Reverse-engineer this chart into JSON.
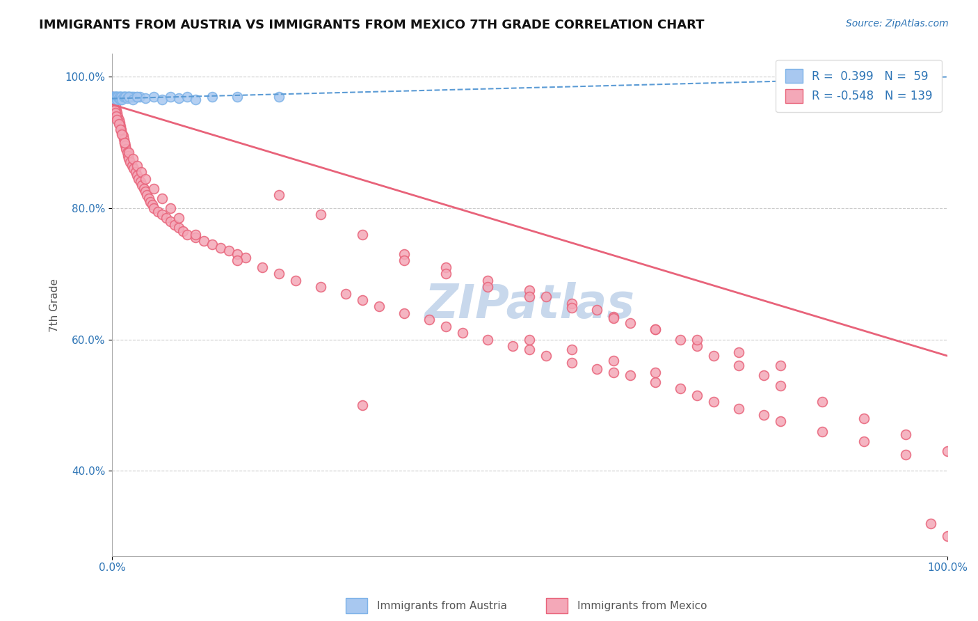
{
  "title": "IMMIGRANTS FROM AUSTRIA VS IMMIGRANTS FROM MEXICO 7TH GRADE CORRELATION CHART",
  "source": "Source: ZipAtlas.com",
  "ylabel": "7th Grade",
  "legend_blue_R": "0.399",
  "legend_blue_N": "59",
  "legend_pink_R": "-0.548",
  "legend_pink_N": "139",
  "legend_blue_label": "Immigrants from Austria",
  "legend_pink_label": "Immigrants from Mexico",
  "watermark": "ZIPatlas",
  "blue_color": "#A8C8F0",
  "blue_edge_color": "#7EB3E8",
  "blue_line_color": "#5B9BD5",
  "pink_color": "#F4A8B8",
  "pink_edge_color": "#E8637A",
  "pink_line_color": "#E8637A",
  "background_color": "#FFFFFF",
  "grid_color": "#CCCCCC",
  "title_color": "#111111",
  "source_color": "#2E75B6",
  "axis_label_color": "#555555",
  "blue_scatter_x": [
    0.001,
    0.002,
    0.003,
    0.004,
    0.005,
    0.006,
    0.007,
    0.008,
    0.009,
    0.01,
    0.01,
    0.012,
    0.013,
    0.014,
    0.015,
    0.016,
    0.017,
    0.018,
    0.019,
    0.02,
    0.021,
    0.022,
    0.023,
    0.025,
    0.027,
    0.03,
    0.033,
    0.0,
    0.001,
    0.001,
    0.002,
    0.002,
    0.003,
    0.003,
    0.004,
    0.005,
    0.006,
    0.007,
    0.008,
    0.009,
    0.01,
    0.011,
    0.012,
    0.014,
    0.016,
    0.018,
    0.02,
    0.025,
    0.03,
    0.04,
    0.05,
    0.06,
    0.07,
    0.08,
    0.09,
    0.1,
    0.12,
    0.15,
    0.2
  ],
  "blue_scatter_y": [
    0.97,
    0.97,
    0.97,
    0.97,
    0.97,
    0.97,
    0.97,
    0.97,
    0.97,
    0.97,
    0.97,
    0.97,
    0.97,
    0.97,
    0.97,
    0.97,
    0.97,
    0.97,
    0.97,
    0.97,
    0.97,
    0.97,
    0.97,
    0.97,
    0.97,
    0.97,
    0.97,
    0.97,
    0.965,
    0.97,
    0.968,
    0.97,
    0.966,
    0.97,
    0.97,
    0.97,
    0.965,
    0.97,
    0.968,
    0.97,
    0.966,
    0.97,
    0.965,
    0.97,
    0.97,
    0.968,
    0.97,
    0.965,
    0.97,
    0.968,
    0.97,
    0.965,
    0.97,
    0.968,
    0.97,
    0.966,
    0.97,
    0.97,
    0.97
  ],
  "pink_scatter_x": [
    0.001,
    0.002,
    0.003,
    0.004,
    0.005,
    0.006,
    0.007,
    0.008,
    0.009,
    0.01,
    0.011,
    0.012,
    0.013,
    0.014,
    0.015,
    0.016,
    0.017,
    0.018,
    0.019,
    0.02,
    0.022,
    0.024,
    0.026,
    0.028,
    0.03,
    0.032,
    0.034,
    0.036,
    0.038,
    0.04,
    0.042,
    0.044,
    0.046,
    0.048,
    0.05,
    0.055,
    0.06,
    0.065,
    0.07,
    0.075,
    0.08,
    0.085,
    0.09,
    0.1,
    0.11,
    0.12,
    0.13,
    0.14,
    0.15,
    0.16,
    0.001,
    0.002,
    0.003,
    0.004,
    0.005,
    0.006,
    0.008,
    0.01,
    0.012,
    0.015,
    0.02,
    0.025,
    0.03,
    0.035,
    0.04,
    0.05,
    0.06,
    0.07,
    0.08,
    0.1,
    0.15,
    0.18,
    0.2,
    0.22,
    0.25,
    0.28,
    0.3,
    0.32,
    0.35,
    0.38,
    0.4,
    0.42,
    0.45,
    0.48,
    0.5,
    0.52,
    0.55,
    0.58,
    0.6,
    0.62,
    0.65,
    0.68,
    0.7,
    0.72,
    0.75,
    0.78,
    0.8,
    0.85,
    0.9,
    0.95,
    0.2,
    0.25,
    0.3,
    0.35,
    0.4,
    0.45,
    0.5,
    0.52,
    0.55,
    0.58,
    0.6,
    0.62,
    0.65,
    0.68,
    0.7,
    0.72,
    0.75,
    0.78,
    0.8,
    0.85,
    0.9,
    0.95,
    1.0,
    0.35,
    0.4,
    0.45,
    0.5,
    0.55,
    0.6,
    0.65,
    0.7,
    0.75,
    0.8,
    0.5,
    0.55,
    0.6,
    0.65,
    0.3,
    0.98,
    1.0
  ],
  "pink_scatter_y": [
    0.97,
    0.965,
    0.96,
    0.955,
    0.95,
    0.945,
    0.94,
    0.935,
    0.93,
    0.925,
    0.92,
    0.915,
    0.91,
    0.905,
    0.9,
    0.895,
    0.89,
    0.885,
    0.88,
    0.875,
    0.87,
    0.865,
    0.86,
    0.855,
    0.85,
    0.845,
    0.84,
    0.835,
    0.83,
    0.825,
    0.82,
    0.815,
    0.81,
    0.805,
    0.8,
    0.795,
    0.79,
    0.785,
    0.78,
    0.775,
    0.77,
    0.765,
    0.76,
    0.755,
    0.75,
    0.745,
    0.74,
    0.735,
    0.73,
    0.725,
    0.96,
    0.955,
    0.95,
    0.945,
    0.94,
    0.935,
    0.928,
    0.92,
    0.912,
    0.9,
    0.885,
    0.875,
    0.865,
    0.855,
    0.845,
    0.83,
    0.815,
    0.8,
    0.785,
    0.76,
    0.72,
    0.71,
    0.7,
    0.69,
    0.68,
    0.67,
    0.66,
    0.65,
    0.64,
    0.63,
    0.62,
    0.61,
    0.6,
    0.59,
    0.585,
    0.575,
    0.565,
    0.555,
    0.55,
    0.545,
    0.535,
    0.525,
    0.515,
    0.505,
    0.495,
    0.485,
    0.475,
    0.46,
    0.445,
    0.425,
    0.82,
    0.79,
    0.76,
    0.73,
    0.71,
    0.69,
    0.675,
    0.665,
    0.655,
    0.645,
    0.635,
    0.625,
    0.615,
    0.6,
    0.59,
    0.575,
    0.56,
    0.545,
    0.53,
    0.505,
    0.48,
    0.455,
    0.43,
    0.72,
    0.7,
    0.68,
    0.665,
    0.648,
    0.632,
    0.615,
    0.6,
    0.58,
    0.56,
    0.6,
    0.585,
    0.568,
    0.55,
    0.5,
    0.32,
    0.3
  ],
  "blue_trend_x": [
    0.0,
    1.0
  ],
  "blue_trend_y": [
    0.967,
    1.0
  ],
  "blue_trend_style": "--",
  "pink_trend_x": [
    0.0,
    1.0
  ],
  "pink_trend_y": [
    0.958,
    0.575
  ],
  "xlim": [
    0.0,
    1.0
  ],
  "ylim": [
    0.27,
    1.035
  ],
  "yticks": [
    0.4,
    0.6,
    0.8,
    1.0
  ],
  "ytick_labels": [
    "40.0%",
    "60.0%",
    "80.0%",
    "100.0%"
  ],
  "xtick_labels": [
    "0.0%",
    "100.0%"
  ],
  "title_fontsize": 13,
  "axis_fontsize": 11,
  "source_fontsize": 10,
  "watermark_color": "#C8D8EC",
  "watermark_fontsize": 48,
  "marker_size": 100
}
